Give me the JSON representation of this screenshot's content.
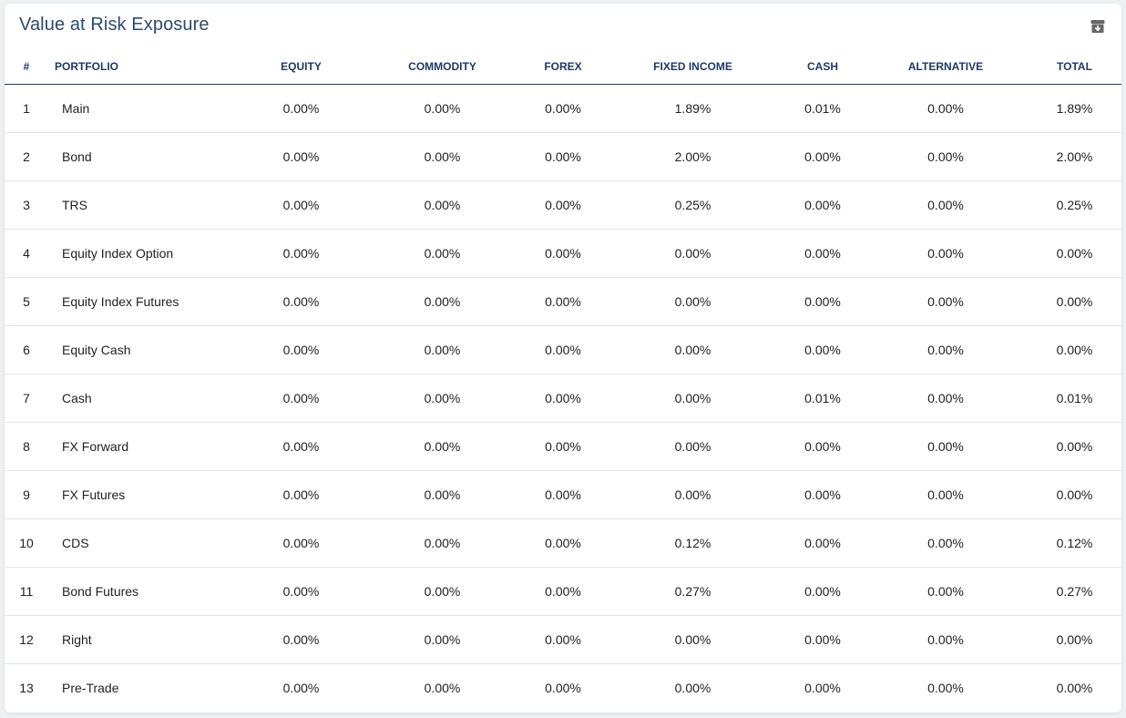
{
  "title": "Value at Risk Exposure",
  "archive_icon": "archive-icon",
  "columns": {
    "idx": "#",
    "portfolio": "PORTFOLIO",
    "equity": "EQUITY",
    "commodity": "COMMODITY",
    "forex": "FOREX",
    "fixed_income": "FIXED INCOME",
    "cash": "CASH",
    "alternative": "ALTERNATIVE",
    "total": "TOTAL"
  },
  "rows": [
    {
      "idx": "1",
      "portfolio": "Main",
      "equity": "0.00%",
      "commodity": "0.00%",
      "forex": "0.00%",
      "fixed_income": "1.89%",
      "cash": "0.01%",
      "alternative": "0.00%",
      "total": "1.89%"
    },
    {
      "idx": "2",
      "portfolio": "Bond",
      "equity": "0.00%",
      "commodity": "0.00%",
      "forex": "0.00%",
      "fixed_income": "2.00%",
      "cash": "0.00%",
      "alternative": "0.00%",
      "total": "2.00%"
    },
    {
      "idx": "3",
      "portfolio": "TRS",
      "equity": "0.00%",
      "commodity": "0.00%",
      "forex": "0.00%",
      "fixed_income": "0.25%",
      "cash": "0.00%",
      "alternative": "0.00%",
      "total": "0.25%"
    },
    {
      "idx": "4",
      "portfolio": "Equity Index Option",
      "equity": "0.00%",
      "commodity": "0.00%",
      "forex": "0.00%",
      "fixed_income": "0.00%",
      "cash": "0.00%",
      "alternative": "0.00%",
      "total": "0.00%"
    },
    {
      "idx": "5",
      "portfolio": "Equity Index Futures",
      "equity": "0.00%",
      "commodity": "0.00%",
      "forex": "0.00%",
      "fixed_income": "0.00%",
      "cash": "0.00%",
      "alternative": "0.00%",
      "total": "0.00%"
    },
    {
      "idx": "6",
      "portfolio": "Equity Cash",
      "equity": "0.00%",
      "commodity": "0.00%",
      "forex": "0.00%",
      "fixed_income": "0.00%",
      "cash": "0.00%",
      "alternative": "0.00%",
      "total": "0.00%"
    },
    {
      "idx": "7",
      "portfolio": "Cash",
      "equity": "0.00%",
      "commodity": "0.00%",
      "forex": "0.00%",
      "fixed_income": "0.00%",
      "cash": "0.01%",
      "alternative": "0.00%",
      "total": "0.01%"
    },
    {
      "idx": "8",
      "portfolio": "FX Forward",
      "equity": "0.00%",
      "commodity": "0.00%",
      "forex": "0.00%",
      "fixed_income": "0.00%",
      "cash": "0.00%",
      "alternative": "0.00%",
      "total": "0.00%"
    },
    {
      "idx": "9",
      "portfolio": "FX Futures",
      "equity": "0.00%",
      "commodity": "0.00%",
      "forex": "0.00%",
      "fixed_income": "0.00%",
      "cash": "0.00%",
      "alternative": "0.00%",
      "total": "0.00%"
    },
    {
      "idx": "10",
      "portfolio": "CDS",
      "equity": "0.00%",
      "commodity": "0.00%",
      "forex": "0.00%",
      "fixed_income": "0.12%",
      "cash": "0.00%",
      "alternative": "0.00%",
      "total": "0.12%"
    },
    {
      "idx": "11",
      "portfolio": "Bond Futures",
      "equity": "0.00%",
      "commodity": "0.00%",
      "forex": "0.00%",
      "fixed_income": "0.27%",
      "cash": "0.00%",
      "alternative": "0.00%",
      "total": "0.27%"
    },
    {
      "idx": "12",
      "portfolio": "Right",
      "equity": "0.00%",
      "commodity": "0.00%",
      "forex": "0.00%",
      "fixed_income": "0.00%",
      "cash": "0.00%",
      "alternative": "0.00%",
      "total": "0.00%"
    },
    {
      "idx": "13",
      "portfolio": "Pre-Trade",
      "equity": "0.00%",
      "commodity": "0.00%",
      "forex": "0.00%",
      "fixed_income": "0.00%",
      "cash": "0.00%",
      "alternative": "0.00%",
      "total": "0.00%"
    }
  ]
}
